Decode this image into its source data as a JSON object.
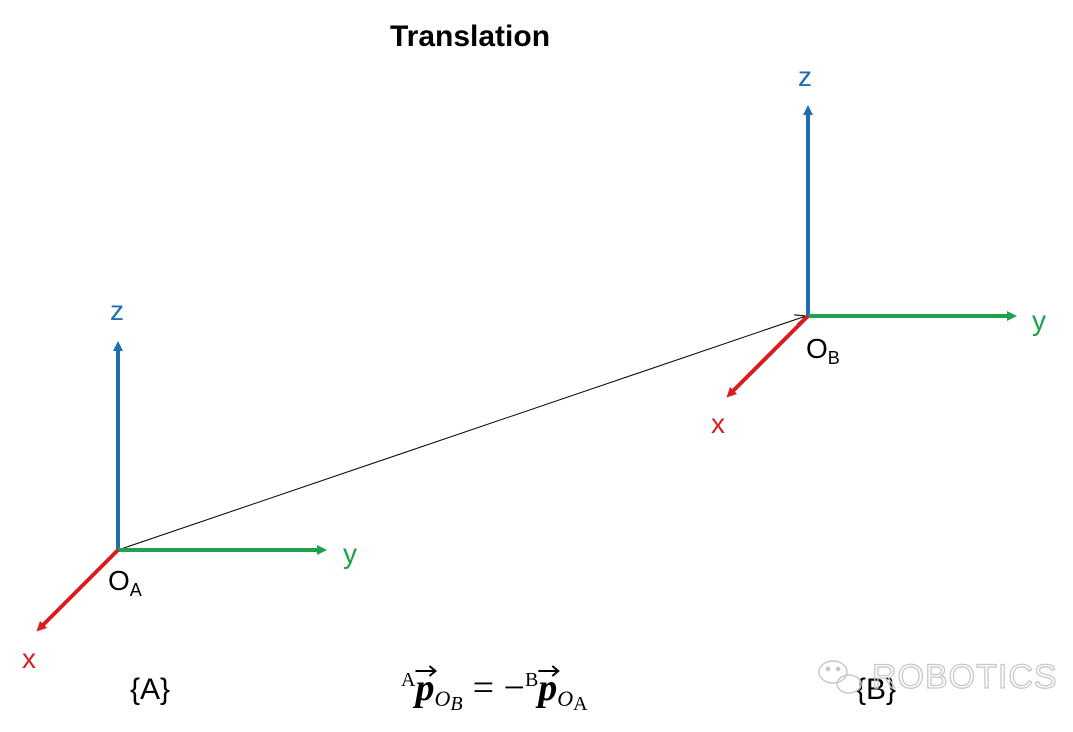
{
  "title": "Translation",
  "colors": {
    "z_axis": "#1f6fb0",
    "y_axis": "#1fa04a",
    "x_axis": "#d62020",
    "vector": "#000000",
    "watermark": "#c8c8c8"
  },
  "frame_a": {
    "name": "{A}",
    "origin": "O",
    "origin_sub": "A",
    "axis_x": "x",
    "axis_y": "y",
    "axis_z": "z"
  },
  "frame_b": {
    "name": "{B}",
    "origin": "O",
    "origin_sub": "B",
    "axis_x": "x",
    "axis_y": "y",
    "axis_z": "z"
  },
  "equation": {
    "lhs_pre": "A",
    "lhs_symbol": "p",
    "lhs_sub": "O",
    "lhs_subsub": "B",
    "operator": "= −",
    "rhs_pre": "B",
    "rhs_symbol": "p",
    "rhs_sub": "O",
    "rhs_subsub": "A"
  },
  "watermark": {
    "text": "ROBOTICS",
    "icon": "wechat-icon"
  }
}
